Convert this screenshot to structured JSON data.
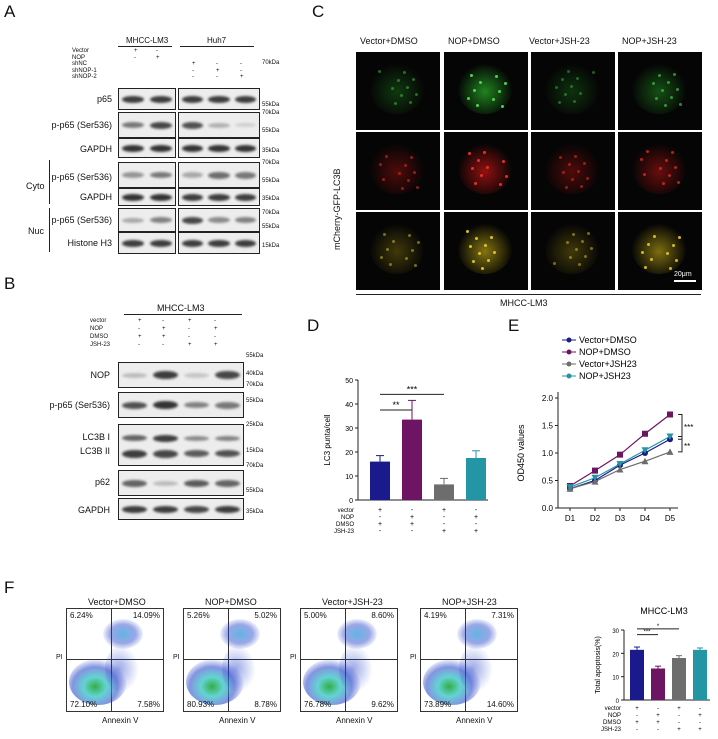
{
  "panel_labels": {
    "a": "A",
    "b": "B",
    "c": "C",
    "d": "D",
    "e": "E",
    "f": "F"
  },
  "panel_a": {
    "group1": "MHCC-LM3",
    "group2": "Huh7",
    "treatments": [
      {
        "label": "Vector",
        "signs": [
          "+",
          "-",
          "",
          "",
          ""
        ]
      },
      {
        "label": "NOP",
        "signs": [
          "-",
          "+",
          "",
          "",
          ""
        ]
      },
      {
        "label": "shNC",
        "signs": [
          "",
          "",
          "+",
          "-",
          "-"
        ]
      },
      {
        "label": "shNOP-1",
        "signs": [
          "",
          "",
          "-",
          "+",
          "-"
        ]
      },
      {
        "label": "shNOP-2",
        "signs": [
          "",
          "",
          "-",
          "-",
          "+"
        ]
      }
    ],
    "rows": [
      "p65",
      "p-p65 (Ser536)",
      "GAPDH",
      "p-p65 (Ser536)",
      "GAPDH",
      "p-p65 (Ser536)",
      "Histone H3"
    ],
    "cyto": "Cyto",
    "nuc": "Nuc",
    "markers": [
      "70kDa",
      "55kDa",
      "70kDa",
      "55kDa",
      "35kDa",
      "70kDa",
      "55kDa",
      "35kDa",
      "70kDa",
      "55kDa",
      "15kDa"
    ]
  },
  "panel_b": {
    "group": "MHCC-LM3",
    "treatments": [
      {
        "label": "vector",
        "signs": [
          "+",
          "-",
          "+",
          "-"
        ]
      },
      {
        "label": "NOP",
        "signs": [
          "-",
          "+",
          "-",
          "+"
        ]
      },
      {
        "label": "DMSO",
        "signs": [
          "+",
          "+",
          "-",
          "-"
        ]
      },
      {
        "label": "JSH-23",
        "signs": [
          "-",
          "-",
          "+",
          "+"
        ]
      }
    ],
    "rows": [
      "NOP",
      "p-p65 (Ser536)",
      "LC3B I",
      "LC3B II",
      "p62",
      "GAPDH"
    ],
    "markers": [
      "55kDa",
      "40kDa",
      "70kDa",
      "55kDa",
      "25kDa",
      "15kDa",
      "70kDa",
      "55kDa",
      "35kDa"
    ]
  },
  "panel_c": {
    "columns": [
      "Vector+DMSO",
      "NOP+DMSO",
      "Vector+JSH-23",
      "NOP+JSH-23"
    ],
    "ylabel": "mCherry-GFP-LC3B",
    "scalebar": "20μm",
    "footer": "MHCC-LM3"
  },
  "panel_f": {
    "plots": [
      {
        "title": "Vector+DMSO",
        "q": [
          "6.24%",
          "14.09%",
          "72.10%",
          "7.58%"
        ]
      },
      {
        "title": "NOP+DMSO",
        "q": [
          "5.26%",
          "5.02%",
          "80.93%",
          "8.78%"
        ]
      },
      {
        "title": "Vector+JSH-23",
        "q": [
          "5.00%",
          "8.60%",
          "76.78%",
          "9.62%"
        ]
      },
      {
        "title": "NOP+JSH-23",
        "q": [
          "4.19%",
          "7.31%",
          "73.89%",
          "14.60%"
        ]
      }
    ],
    "xlabel": "Annexin V",
    "ylabel": "PI"
  },
  "colors": {
    "navy": "#1a1a8c",
    "purple": "#6d1462",
    "gray": "#6d6d6d",
    "teal": "#2395a4"
  },
  "chart_data": [
    {
      "id": "D",
      "type": "bar",
      "ylabel": "LC3 punta/cell",
      "ylim": [
        0,
        50
      ],
      "yticks": [
        0,
        10,
        20,
        30,
        40,
        50
      ],
      "categories": [
        "Vector+DMSO",
        "NOP+DMSO",
        "Vector+JSH-23",
        "NOP+JSH-23"
      ],
      "values": [
        16,
        33.5,
        6.5,
        17.5
      ],
      "errors": [
        2.5,
        8,
        2.5,
        3
      ],
      "significance": [
        "**",
        "***"
      ],
      "conditions": [
        {
          "label": "vector",
          "signs": [
            "+",
            "-",
            "+",
            "-"
          ]
        },
        {
          "label": "NOP",
          "signs": [
            "-",
            "+",
            "-",
            "+"
          ]
        },
        {
          "label": "DMSO",
          "signs": [
            "+",
            "+",
            "-",
            "-"
          ]
        },
        {
          "label": "JSH-23",
          "signs": [
            "-",
            "-",
            "+",
            "+"
          ]
        }
      ]
    },
    {
      "id": "E",
      "type": "line",
      "ylabel": "OD450 values",
      "x": [
        "D1",
        "D2",
        "D3",
        "D4",
        "D5"
      ],
      "ylim": [
        0,
        2.0
      ],
      "yticks": [
        "0.0",
        "0.5",
        "1.0",
        "1.5",
        "2.0"
      ],
      "series": [
        {
          "name": "Vector+DMSO",
          "values": [
            0.35,
            0.5,
            0.78,
            1.0,
            1.25
          ]
        },
        {
          "name": "NOP+DMSO",
          "values": [
            0.4,
            0.68,
            0.97,
            1.35,
            1.7
          ]
        },
        {
          "name": "Vector+JSH23",
          "values": [
            0.35,
            0.48,
            0.7,
            0.85,
            1.02
          ]
        },
        {
          "name": "NOP+JSH23",
          "values": [
            0.38,
            0.55,
            0.8,
            1.05,
            1.3
          ]
        }
      ],
      "significance": [
        "***",
        "**"
      ]
    },
    {
      "id": "F",
      "type": "bar",
      "title": "MHCC-LM3",
      "ylabel": "Total apoptosis(%)",
      "ylim": [
        0,
        30
      ],
      "yticks": [
        0,
        10,
        20,
        30
      ],
      "categories": [
        "Vector+DMSO",
        "NOP+DMSO",
        "Vector+JSH-23",
        "NOP+JSH-23"
      ],
      "values": [
        21.5,
        13.5,
        18,
        21.5
      ],
      "errors": [
        1.2,
        1,
        1,
        0.8
      ],
      "significance": [
        "***",
        "*"
      ],
      "conditions": [
        {
          "label": "vector",
          "signs": [
            "+",
            "-",
            "+",
            "-"
          ]
        },
        {
          "label": "NOP",
          "signs": [
            "-",
            "+",
            "-",
            "+"
          ]
        },
        {
          "label": "DMSO",
          "signs": [
            "+",
            "+",
            "-",
            "-"
          ]
        },
        {
          "label": "JSH-23",
          "signs": [
            "-",
            "-",
            "+",
            "+"
          ]
        }
      ]
    }
  ]
}
